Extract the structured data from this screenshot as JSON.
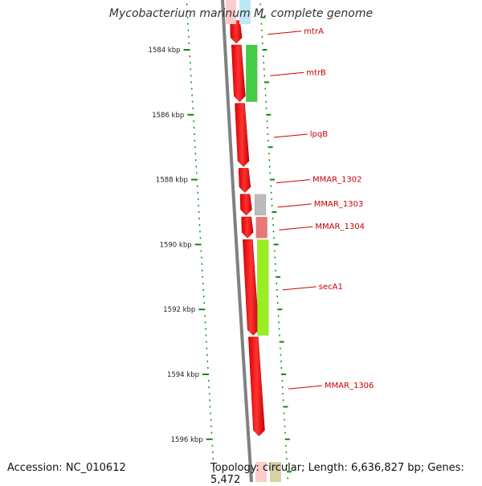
{
  "title": "Mycobacterium marinum M, complete genome",
  "footer": {
    "accession": "Accession: NC_010612",
    "topology": "Topology: circular; Length: 6,636,827 bp; Genes: 5,472"
  },
  "ticks": [
    {
      "label": "1584 kbp",
      "kbp": 1584
    },
    {
      "label": "1586 kbp",
      "kbp": 1586
    },
    {
      "label": "1588 kbp",
      "kbp": 1588
    },
    {
      "label": "1590 kbp",
      "kbp": 1590
    },
    {
      "label": "1592 kbp",
      "kbp": 1592
    },
    {
      "label": "1594 kbp",
      "kbp": 1594
    },
    {
      "label": "1596 kbp",
      "kbp": 1596
    }
  ],
  "genes": [
    {
      "name": "mtrA",
      "start": 1583.1,
      "end": 1583.8
    },
    {
      "name": "mtrB",
      "start": 1583.85,
      "end": 1585.6
    },
    {
      "name": "lpqB",
      "start": 1585.65,
      "end": 1587.6
    },
    {
      "name": "MMAR_1302",
      "start": 1587.65,
      "end": 1588.4
    },
    {
      "name": "MMAR_1303",
      "start": 1588.45,
      "end": 1589.1
    },
    {
      "name": "MMAR_1304",
      "start": 1589.15,
      "end": 1589.8
    },
    {
      "name": "secA1",
      "start": 1589.85,
      "end": 1592.8
    },
    {
      "name": "MMAR_1306",
      "start": 1592.85,
      "end": 1595.9
    }
  ],
  "features": [
    {
      "type": "CDS",
      "color": "#44cc44",
      "start": 1583.85,
      "end": 1585.6
    },
    {
      "type": "CDS",
      "color": "#bbbbbb",
      "start": 1588.45,
      "end": 1589.1
    },
    {
      "type": "CDS",
      "color": "#e87878",
      "start": 1589.15,
      "end": 1589.8
    },
    {
      "type": "CDS",
      "color": "#99ee22",
      "start": 1589.85,
      "end": 1592.8
    }
  ],
  "colors": {
    "gene": "#ff0000",
    "backbone": "#808080",
    "ticks": "#118811",
    "gene_label": "#cc0000"
  }
}
